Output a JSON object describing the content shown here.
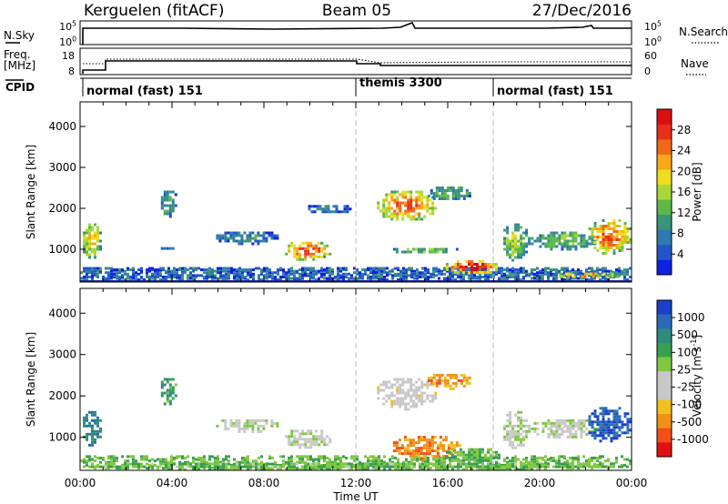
{
  "header": {
    "radar": "Kerguelen (fitACF)",
    "beam": "Beam 05",
    "date": "27/Dec/2016"
  },
  "nsky_panel": {
    "left_label": "N.Sky",
    "right_label": "N.Search",
    "left_ticks": [
      "10^5",
      "10^0"
    ],
    "right_ticks": [
      "10^5",
      "10^0"
    ]
  },
  "freq_panel": {
    "left_label": "Freq.",
    "left_unit": "[MHz]",
    "right_label": "Nave",
    "left_ticks": [
      "18",
      "8"
    ],
    "right_ticks": [
      "60",
      "0"
    ]
  },
  "cpid": {
    "label": "CPID",
    "segments": [
      {
        "label": "normal (fast) 151",
        "start_h": 0,
        "end_h": 12
      },
      {
        "label": "themis 3300",
        "start_h": 12,
        "end_h": 18
      },
      {
        "label": "normal (fast) 151",
        "start_h": 18,
        "end_h": 24
      }
    ]
  },
  "time_axis": {
    "ticks": [
      "00:00",
      "04:00",
      "08:00",
      "12:00",
      "16:00",
      "20:00",
      "00:00"
    ],
    "xlabel": "Time UT"
  },
  "chart_data": [
    {
      "type": "heatmap",
      "name": "power",
      "ylabel": "Slant Range [km]",
      "xlim": [
        0,
        24
      ],
      "ylim": [
        200,
        4600
      ],
      "y_ticks": [
        1000,
        2000,
        3000,
        4000
      ],
      "colorbar": {
        "label": "Power [dB]",
        "ticks": [
          "4",
          "8",
          "12",
          "16",
          "20",
          "24",
          "28"
        ],
        "colors": [
          "#1020e0",
          "#2255c8",
          "#2f7ab0",
          "#3a9477",
          "#5cb84a",
          "#a8d838",
          "#f0dc20",
          "#f8a818",
          "#f06818",
          "#e83018",
          "#d81010"
        ]
      },
      "echo_regions": [
        {
          "t0": 0.0,
          "t1": 0.9,
          "r0": 800,
          "r1": 1700,
          "level": 0.65
        },
        {
          "t0": 3.4,
          "t1": 4.2,
          "r0": 1800,
          "r1": 2500,
          "level": 0.35
        },
        {
          "t0": 3.4,
          "t1": 4.0,
          "r0": 980,
          "r1": 1120,
          "level": 0.2
        },
        {
          "t0": 5.8,
          "t1": 8.6,
          "r0": 1150,
          "r1": 1500,
          "level": 0.3
        },
        {
          "t0": 8.8,
          "t1": 10.9,
          "r0": 750,
          "r1": 1250,
          "level": 0.85
        },
        {
          "t0": 9.8,
          "t1": 11.8,
          "r0": 1900,
          "r1": 2150,
          "level": 0.25
        },
        {
          "t0": 12.8,
          "t1": 15.5,
          "r0": 1700,
          "r1": 2500,
          "level": 0.8
        },
        {
          "t0": 15.0,
          "t1": 17.0,
          "r0": 2200,
          "r1": 2600,
          "level": 0.4
        },
        {
          "t0": 13.5,
          "t1": 16.5,
          "r0": 900,
          "r1": 1100,
          "level": 0.45
        },
        {
          "t0": 15.8,
          "t1": 18.2,
          "r0": 400,
          "r1": 800,
          "level": 0.95
        },
        {
          "t0": 18.3,
          "t1": 19.5,
          "r0": 750,
          "r1": 1700,
          "level": 0.5
        },
        {
          "t0": 19.5,
          "t1": 22.5,
          "r0": 1000,
          "r1": 1500,
          "level": 0.45
        },
        {
          "t0": 22.0,
          "t1": 24.0,
          "r0": 900,
          "r1": 1800,
          "level": 0.8
        },
        {
          "t0": 20.5,
          "t1": 23.5,
          "r0": 300,
          "r1": 500,
          "level": 0.7
        }
      ]
    },
    {
      "type": "heatmap",
      "name": "velocity",
      "ylabel": "Slant Range [km]",
      "xlim": [
        0,
        24
      ],
      "ylim": [
        200,
        4600
      ],
      "y_ticks": [
        1000,
        2000,
        3000,
        4000
      ],
      "colorbar": {
        "label": "Velocity [m s^-1]",
        "ticks": [
          "1000",
          "500",
          "100",
          "25",
          "-25",
          "-100",
          "-500",
          "-1000"
        ],
        "colors": [
          "#1a40c8",
          "#2a6ab8",
          "#2f8a80",
          "#3aa050",
          "#80c840",
          "#c8c8c8",
          "#c8c8c8",
          "#f0c020",
          "#f09018",
          "#f05018",
          "#e01010"
        ]
      },
      "echo_regions": [
        {
          "t0": 0.0,
          "t1": 0.9,
          "r0": 800,
          "r1": 1700,
          "level": 0.2
        },
        {
          "t0": 3.4,
          "t1": 4.2,
          "r0": 1800,
          "r1": 2500,
          "level": 0.3
        },
        {
          "t0": 5.8,
          "t1": 8.6,
          "r0": 1150,
          "r1": 1500,
          "level": 0.5
        },
        {
          "t0": 8.8,
          "t1": 10.9,
          "r0": 750,
          "r1": 1250,
          "level": 0.5
        },
        {
          "t0": 12.8,
          "t1": 15.5,
          "r0": 1700,
          "r1": 2500,
          "level": 0.55
        },
        {
          "t0": 15.0,
          "t1": 17.0,
          "r0": 2200,
          "r1": 2600,
          "level": 0.75
        },
        {
          "t0": 13.5,
          "t1": 16.5,
          "r0": 500,
          "r1": 1100,
          "level": 0.78
        },
        {
          "t0": 15.8,
          "t1": 18.2,
          "r0": 400,
          "r1": 800,
          "level": 0.35
        },
        {
          "t0": 18.3,
          "t1": 19.5,
          "r0": 750,
          "r1": 1700,
          "level": 0.5
        },
        {
          "t0": 19.5,
          "t1": 22.5,
          "r0": 1000,
          "r1": 1500,
          "level": 0.5
        },
        {
          "t0": 22.0,
          "t1": 24.0,
          "r0": 900,
          "r1": 1800,
          "level": 0.1
        },
        {
          "t0": 0.0,
          "t1": 24.0,
          "r0": 220,
          "r1": 450,
          "level": 0.38
        }
      ]
    }
  ]
}
